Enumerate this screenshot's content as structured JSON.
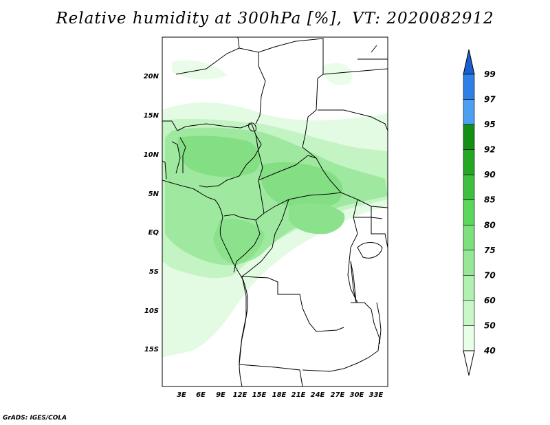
{
  "title": {
    "variable": "Relative humidity at 300hPa [%],",
    "valid_time": "VT: 2020082912"
  },
  "credit": "GrADS: IGES/COLA",
  "map": {
    "lat_labels": [
      "20N",
      "15N",
      "10N",
      "5N",
      "EQ",
      "5S",
      "10S",
      "15S"
    ],
    "lon_labels": [
      "3E",
      "6E",
      "9E",
      "12E",
      "15E",
      "18E",
      "21E",
      "24E",
      "27E",
      "30E",
      "33E"
    ]
  },
  "colorbar": {
    "levels": [
      "40",
      "50",
      "60",
      "70",
      "75",
      "80",
      "85",
      "90",
      "92",
      "95",
      "97",
      "99"
    ],
    "colors": [
      "#ffffff",
      "#e6ffe6",
      "#c8f7c8",
      "#b0f0b0",
      "#96e896",
      "#7ce07c",
      "#5cd65c",
      "#3fbf3f",
      "#24a824",
      "#148f14",
      "#4d9ff0",
      "#2e7fe6",
      "#1a5fd0"
    ]
  }
}
